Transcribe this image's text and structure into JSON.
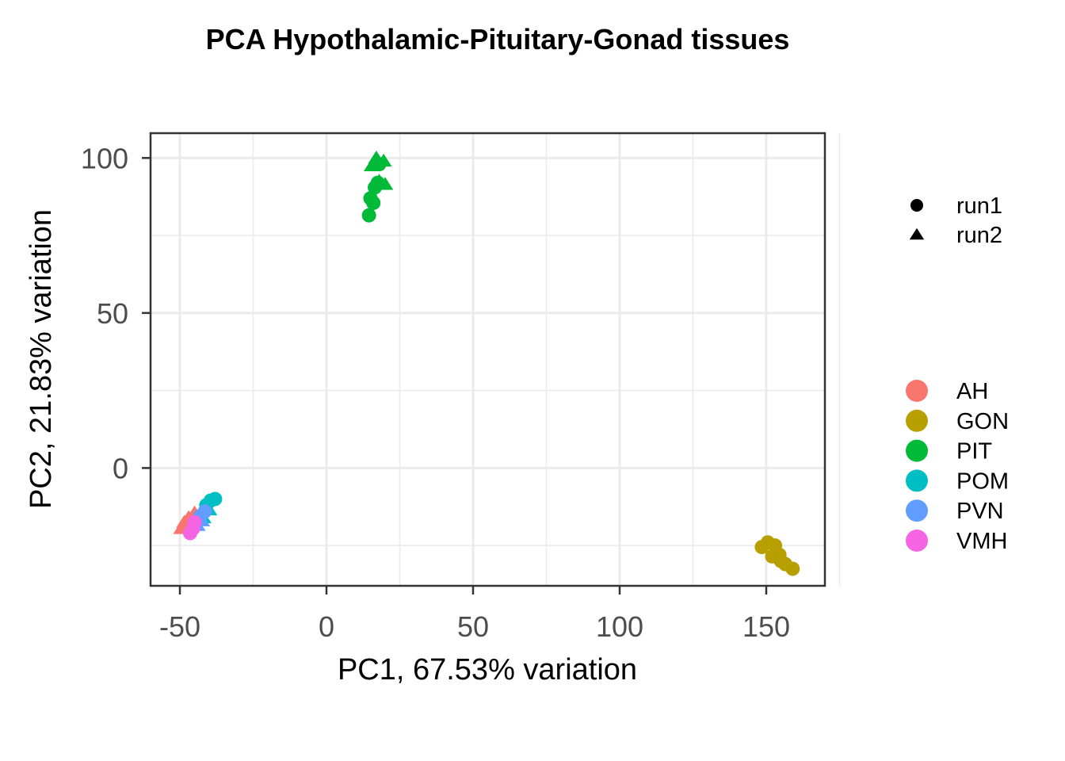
{
  "chart_data": {
    "type": "scatter",
    "title": "PCA Hypothalamic-Pituitary-Gonad tissues",
    "xlabel": "PC1, 67.53% variation",
    "ylabel": "PC2, 21.83% variation",
    "xlim": [
      -60,
      170
    ],
    "ylim": [
      -38,
      108
    ],
    "xticks": [
      -50,
      0,
      50,
      100,
      150
    ],
    "yticks": [
      0,
      50,
      100
    ],
    "xtick_labels": [
      "-50",
      "0",
      "50",
      "100",
      "150"
    ],
    "ytick_labels": [
      "0",
      "50",
      "100"
    ],
    "grid": true,
    "legend_position": "right",
    "shape_legend": [
      {
        "label": "run1",
        "shape": "circle"
      },
      {
        "label": "run2",
        "shape": "triangle"
      }
    ],
    "color_legend": [
      {
        "label": "AH",
        "color": "#F8766D"
      },
      {
        "label": "GON",
        "color": "#B79F00"
      },
      {
        "label": "PIT",
        "color": "#00BA38"
      },
      {
        "label": "POM",
        "color": "#00BFC4"
      },
      {
        "label": "PVN",
        "color": "#619CFF"
      },
      {
        "label": "VMH",
        "color": "#F564E3"
      }
    ],
    "series": [
      {
        "name": "GON",
        "color": "#B79F00",
        "points": [
          {
            "x": 148.5,
            "y": -25.5,
            "shape": "circle"
          },
          {
            "x": 150.5,
            "y": -24.0,
            "shape": "circle"
          },
          {
            "x": 153.0,
            "y": -25.0,
            "shape": "circle"
          },
          {
            "x": 152.0,
            "y": -28.5,
            "shape": "circle"
          },
          {
            "x": 154.5,
            "y": -28.0,
            "shape": "circle"
          },
          {
            "x": 155.0,
            "y": -30.0,
            "shape": "circle"
          },
          {
            "x": 156.5,
            "y": -31.0,
            "shape": "circle"
          },
          {
            "x": 159.0,
            "y": -32.5,
            "shape": "circle"
          }
        ]
      },
      {
        "name": "PIT",
        "color": "#00BA38",
        "points": [
          {
            "x": 14.5,
            "y": 81.5,
            "shape": "circle"
          },
          {
            "x": 15.0,
            "y": 87.0,
            "shape": "circle"
          },
          {
            "x": 16.0,
            "y": 85.5,
            "shape": "circle"
          },
          {
            "x": 16.5,
            "y": 90.5,
            "shape": "circle"
          },
          {
            "x": 17.5,
            "y": 92.0,
            "shape": "circle"
          },
          {
            "x": 18.0,
            "y": 98.0,
            "shape": "circle"
          },
          {
            "x": 15.5,
            "y": 97.5,
            "shape": "triangle"
          },
          {
            "x": 17.0,
            "y": 100.0,
            "shape": "triangle"
          },
          {
            "x": 19.5,
            "y": 99.0,
            "shape": "triangle"
          },
          {
            "x": 18.0,
            "y": 92.5,
            "shape": "triangle"
          },
          {
            "x": 20.0,
            "y": 91.5,
            "shape": "triangle"
          }
        ]
      },
      {
        "name": "AH",
        "color": "#F8766D",
        "points": [
          {
            "x": -49.5,
            "y": -19.5,
            "shape": "triangle"
          },
          {
            "x": -48.5,
            "y": -17.5,
            "shape": "triangle"
          },
          {
            "x": -47.0,
            "y": -16.0,
            "shape": "triangle"
          },
          {
            "x": -45.0,
            "y": -14.5,
            "shape": "triangle"
          },
          {
            "x": -47.5,
            "y": -19.0,
            "shape": "circle"
          },
          {
            "x": -46.0,
            "y": -18.0,
            "shape": "circle"
          }
        ]
      },
      {
        "name": "POM",
        "color": "#00BFC4",
        "points": [
          {
            "x": -39.5,
            "y": -10.5,
            "shape": "circle"
          },
          {
            "x": -38.0,
            "y": -10.0,
            "shape": "circle"
          },
          {
            "x": -41.0,
            "y": -12.0,
            "shape": "circle"
          },
          {
            "x": -40.0,
            "y": -13.5,
            "shape": "triangle"
          },
          {
            "x": -42.0,
            "y": -16.0,
            "shape": "triangle"
          }
        ]
      },
      {
        "name": "PVN",
        "color": "#619CFF",
        "points": [
          {
            "x": -43.0,
            "y": -15.5,
            "shape": "circle"
          },
          {
            "x": -41.5,
            "y": -14.0,
            "shape": "circle"
          },
          {
            "x": -42.5,
            "y": -17.0,
            "shape": "triangle"
          },
          {
            "x": -44.0,
            "y": -18.5,
            "shape": "triangle"
          }
        ]
      },
      {
        "name": "VMH",
        "color": "#F564E3",
        "points": [
          {
            "x": -46.5,
            "y": -21.0,
            "shape": "circle"
          },
          {
            "x": -45.5,
            "y": -19.5,
            "shape": "circle"
          },
          {
            "x": -45.0,
            "y": -17.5,
            "shape": "circle"
          }
        ]
      }
    ]
  }
}
